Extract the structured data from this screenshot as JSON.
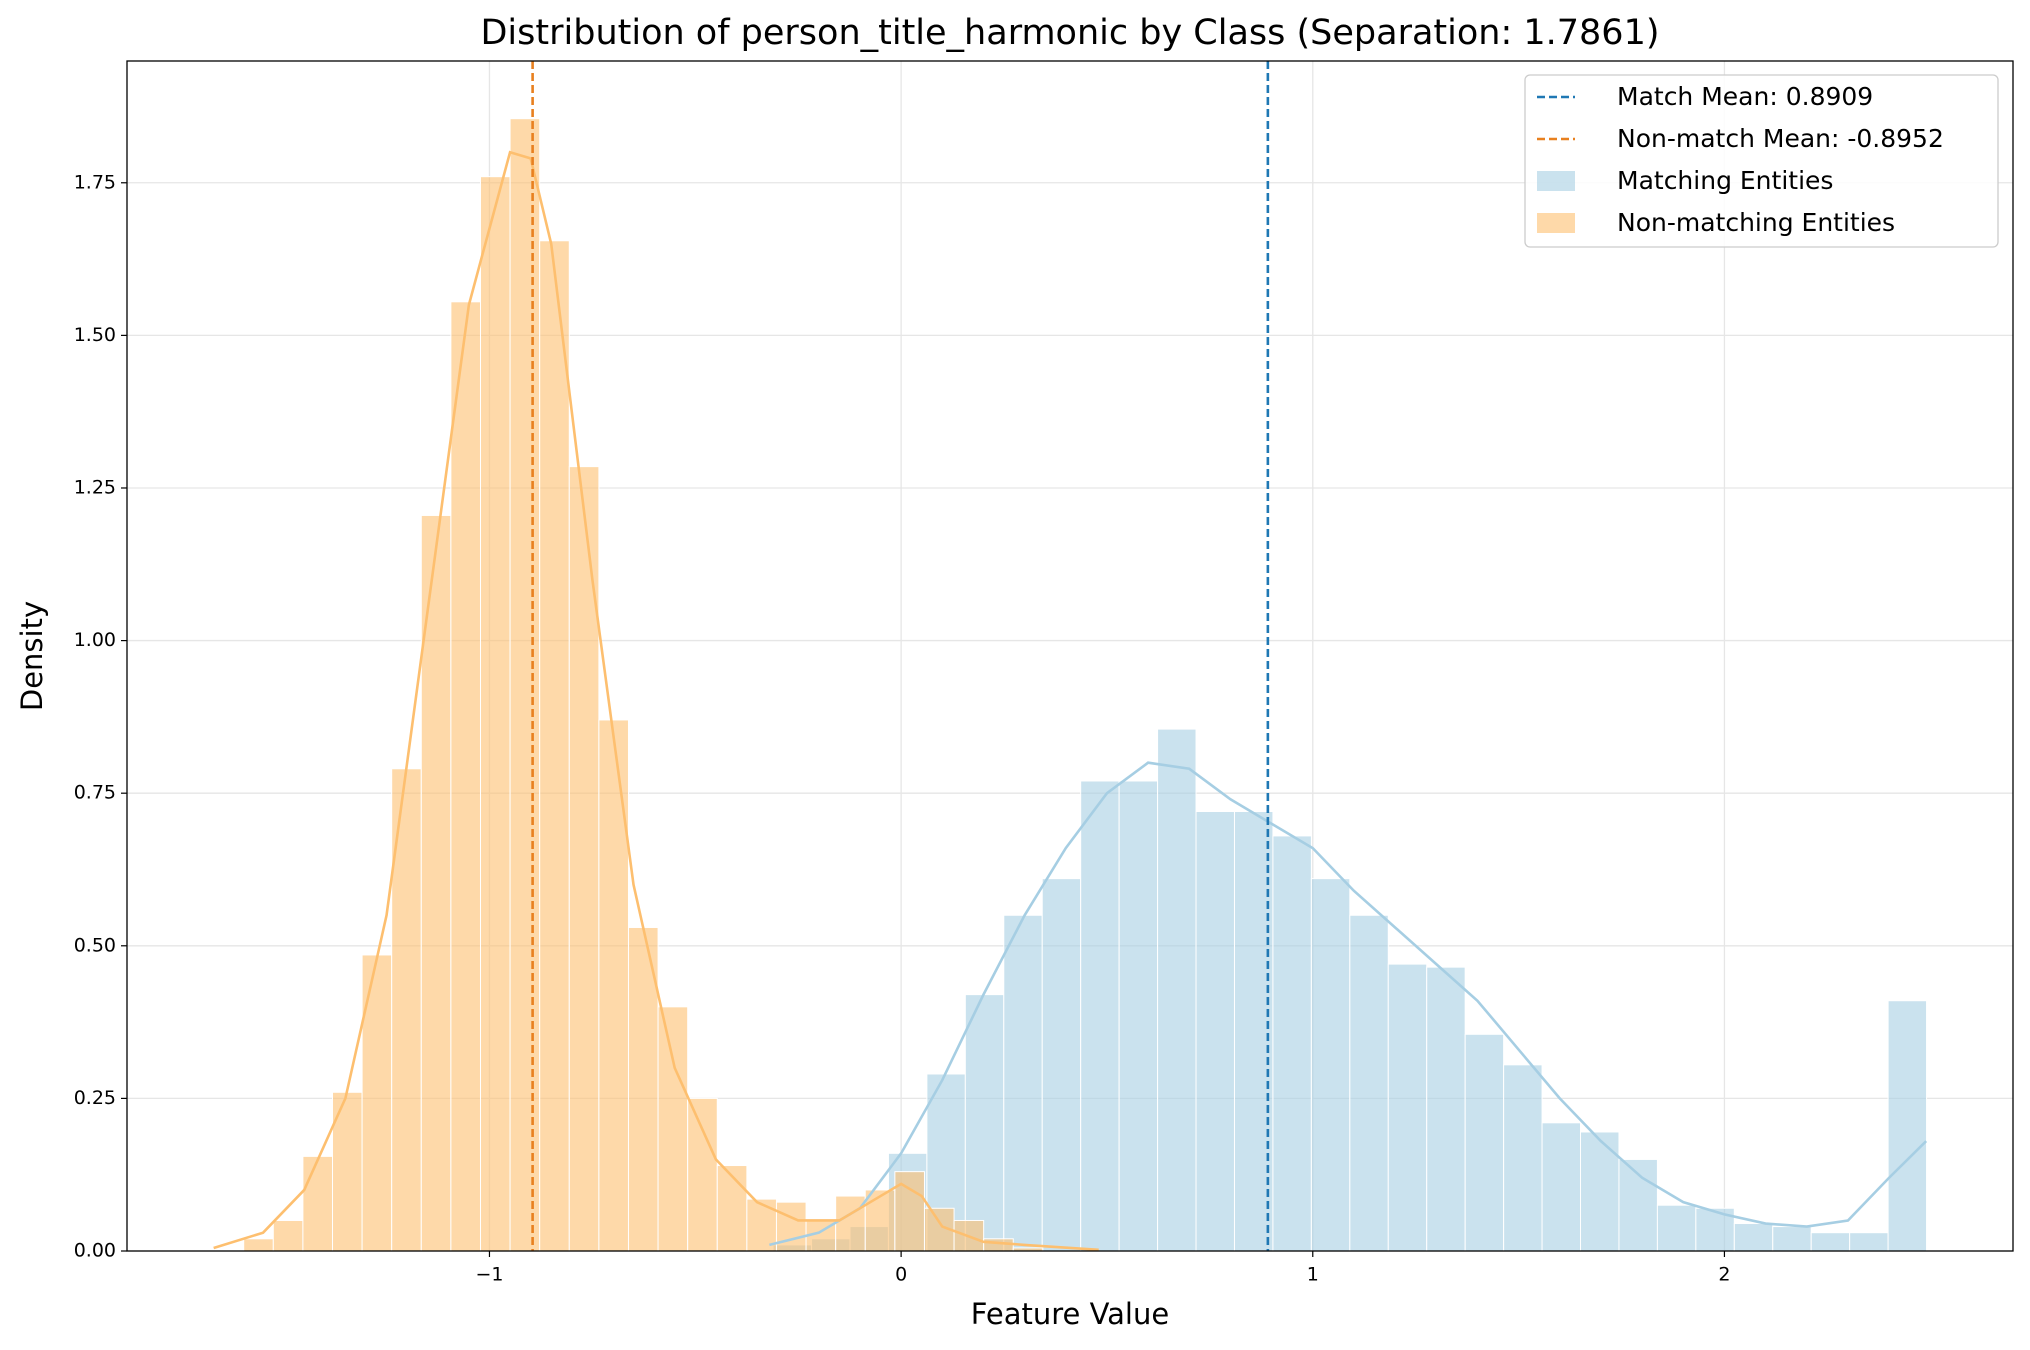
{
  "chart_data": {
    "type": "histogram",
    "title": "Distribution of person_title_harmonic by Class (Separation: 1.7861)",
    "x_label": "Feature Value",
    "y_label": "Density",
    "xlim": [
      -1.8805,
      2.701
    ],
    "ylim": [
      0,
      1.9495
    ],
    "xticks": [
      {
        "value": -1,
        "label": "−1"
      },
      0,
      1,
      2
    ],
    "yticks": [
      {
        "value": 0,
        "label": "0.00"
      },
      {
        "value": 0.25,
        "label": "0.25"
      },
      {
        "value": 0.5,
        "label": "0.50"
      },
      {
        "value": 0.75,
        "label": "0.75"
      },
      {
        "value": 1,
        "label": "1.00"
      },
      {
        "value": 1.25,
        "label": "1.25"
      },
      {
        "value": 1.5,
        "label": "1.50"
      },
      {
        "value": 1.75,
        "label": "1.75"
      }
    ],
    "grid": true,
    "legend": "upper right",
    "mean_lines": [
      {
        "name": "Match Mean: 0.8909",
        "value": 0.8909,
        "color": "#1f78b4"
      },
      {
        "name": "Non-match Mean: -0.8952",
        "value": -0.8952,
        "color": "#e8801f"
      }
    ],
    "series": [
      {
        "name": "Matching Entities",
        "color": "#a6cee3",
        "bins": [
          -0.311,
          -0.2176,
          -0.1242,
          -0.0308,
          0.0626,
          0.156,
          0.2494,
          0.3428,
          0.4362,
          0.5296,
          0.623,
          0.7164,
          0.8098,
          0.9032,
          0.9966,
          1.09,
          1.1834,
          1.2768,
          1.3702,
          1.4636,
          1.557,
          1.6504,
          1.7438,
          1.8372,
          1.9306,
          2.024,
          2.1174,
          2.2108,
          2.3042,
          2.3976,
          2.491
        ],
        "values": [
          0.01,
          0.02,
          0.04,
          0.16,
          0.29,
          0.42,
          0.55,
          0.61,
          0.77,
          0.77,
          0.855,
          0.72,
          0.72,
          0.68,
          0.61,
          0.55,
          0.47,
          0.465,
          0.355,
          0.305,
          0.21,
          0.195,
          0.15,
          0.075,
          0.07,
          0.045,
          0.04,
          0.03,
          0.03,
          0.41
        ],
        "kde_x": [
          -0.32,
          -0.2,
          -0.1,
          0,
          0.1,
          0.2,
          0.3,
          0.4,
          0.5,
          0.6,
          0.7,
          0.8,
          0.9,
          1.0,
          1.1,
          1.2,
          1.3,
          1.4,
          1.5,
          1.6,
          1.7,
          1.8,
          1.9,
          2.0,
          2.1,
          2.2,
          2.3,
          2.4,
          2.49
        ],
        "kde_y": [
          0.01,
          0.03,
          0.07,
          0.16,
          0.28,
          0.42,
          0.55,
          0.66,
          0.75,
          0.8,
          0.79,
          0.74,
          0.7,
          0.66,
          0.59,
          0.53,
          0.47,
          0.41,
          0.33,
          0.25,
          0.18,
          0.12,
          0.08,
          0.06,
          0.045,
          0.04,
          0.05,
          0.12,
          0.18
        ]
      },
      {
        "name": "Non-matching Entities",
        "color": "#fdbf6f",
        "bins": [
          -1.597,
          -1.5251,
          -1.4532,
          -1.3813,
          -1.3094,
          -1.2375,
          -1.1656,
          -1.0937,
          -1.0218,
          -0.9499,
          -0.878,
          -0.8061,
          -0.7342,
          -0.6623,
          -0.5904,
          -0.5185,
          -0.4466,
          -0.3747,
          -0.3028,
          -0.2309,
          -0.159,
          -0.0871,
          -0.0152,
          0.0567,
          0.1286,
          0.2005,
          0.2724,
          0.3443
        ],
        "values": [
          0.02,
          0.05,
          0.155,
          0.26,
          0.485,
          0.79,
          1.205,
          1.555,
          1.76,
          1.855,
          1.655,
          1.285,
          0.87,
          0.53,
          0.4,
          0.25,
          0.14,
          0.085,
          0.08,
          0.05,
          0.09,
          0.1,
          0.13,
          0.07,
          0.05,
          0.02,
          0.005
        ],
        "kde_x": [
          -1.67,
          -1.55,
          -1.45,
          -1.35,
          -1.25,
          -1.15,
          -1.05,
          -0.95,
          -0.9,
          -0.85,
          -0.75,
          -0.65,
          -0.55,
          -0.45,
          -0.35,
          -0.25,
          -0.15,
          -0.05,
          0,
          0.05,
          0.1,
          0.2,
          0.3,
          0.48
        ],
        "kde_y": [
          0.005,
          0.03,
          0.1,
          0.25,
          0.55,
          1.05,
          1.55,
          1.8,
          1.79,
          1.65,
          1.1,
          0.6,
          0.3,
          0.15,
          0.08,
          0.05,
          0.05,
          0.09,
          0.11,
          0.09,
          0.04,
          0.015,
          0.01,
          0.002
        ]
      }
    ]
  }
}
